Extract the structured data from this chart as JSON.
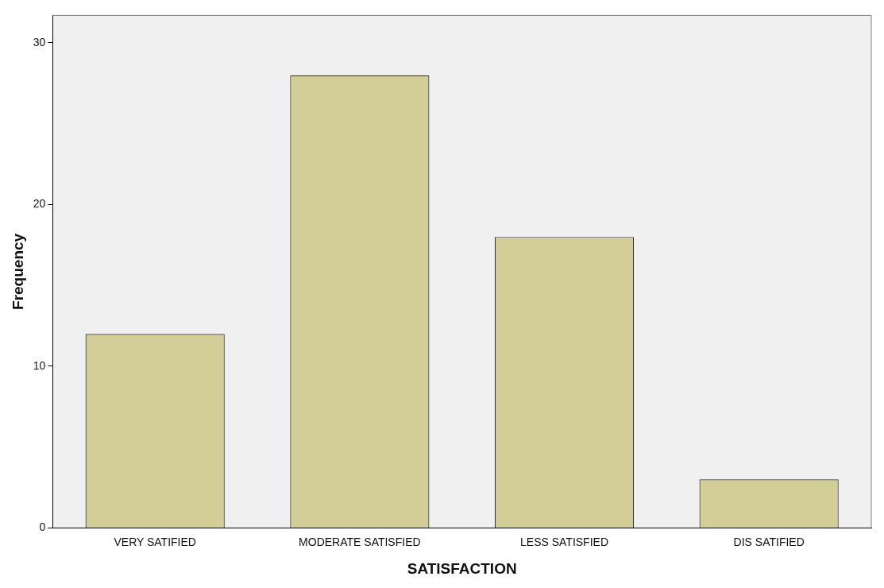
{
  "chart_data": {
    "type": "bar",
    "xlabel": "SATISFACTION",
    "ylabel": "Frequency",
    "categories": [
      "VERY SATIFIED",
      "MODERATE SATISFIED",
      "LESS SATISFIED",
      "DIS SATIFIED"
    ],
    "values": [
      12,
      28,
      18,
      3
    ],
    "color": "#d3ce97",
    "ylim": [
      0,
      31.7
    ],
    "yticks": [
      0,
      10,
      20,
      30
    ],
    "grid": false,
    "legend": false
  }
}
